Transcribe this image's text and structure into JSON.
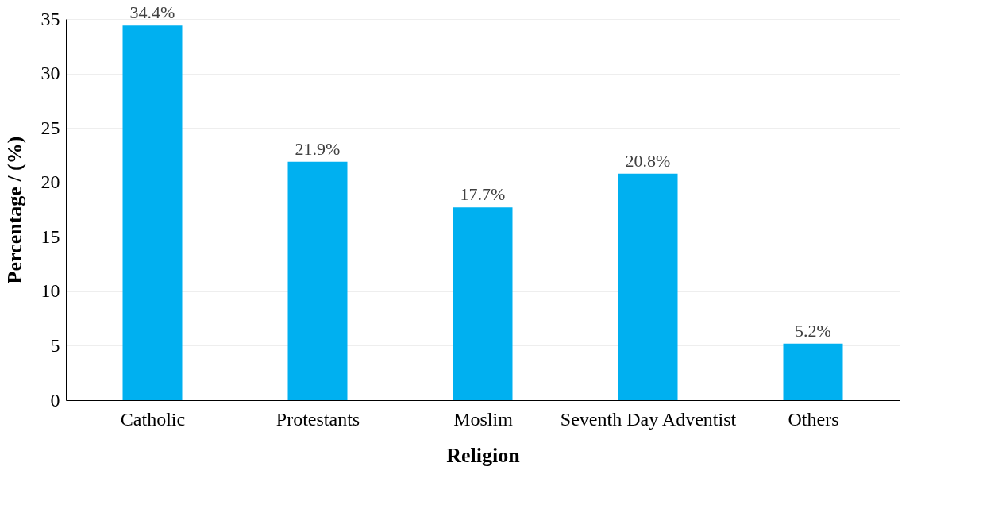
{
  "chart_data": {
    "type": "bar",
    "xlabel": "Religion",
    "ylabel": "Percentage / (%)",
    "categories": [
      "Catholic",
      "Protestants",
      "Moslim",
      "Seventh Day Adventist",
      "Others"
    ],
    "values": [
      34.4,
      21.9,
      17.7,
      20.8,
      5.2
    ],
    "value_labels": [
      "34.4%",
      "21.9%",
      "17.7%",
      "20.8%",
      "5.2%"
    ],
    "color": "#00b0f0",
    "ylim": [
      0,
      35
    ],
    "yticks": [
      0,
      5,
      10,
      15,
      20,
      25,
      30,
      35
    ],
    "grid": "y"
  }
}
